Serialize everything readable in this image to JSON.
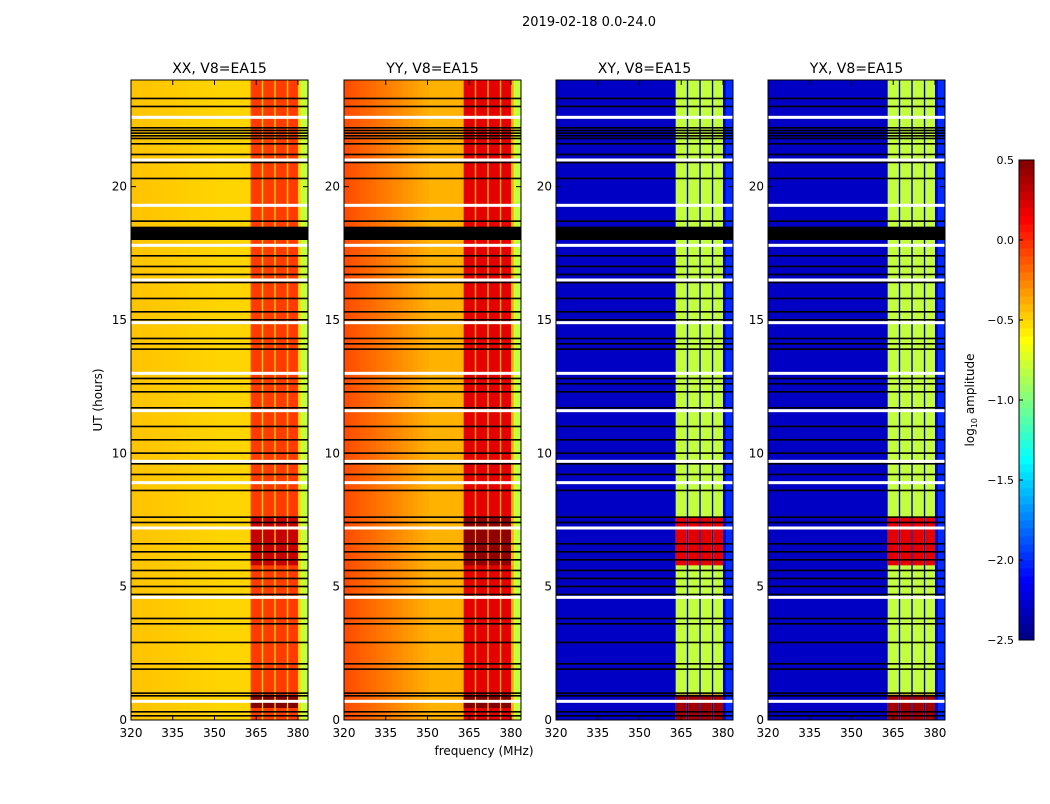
{
  "chart_data": {
    "type": "heatmap",
    "title": "2019-02-18 0.0-24.0",
    "xlabel": "frequency (MHz)",
    "ylabel": "UT (hours)",
    "xlim": [
      320,
      383.6
    ],
    "ylim": [
      0,
      24
    ],
    "xticks": [
      320,
      335,
      350,
      365,
      380
    ],
    "yticks": [
      0,
      5,
      10,
      15,
      20
    ],
    "colorbar": {
      "label_main": "log",
      "label_sub": "10",
      "label_tail": " amplitude",
      "range": [
        -2.5,
        0.5
      ],
      "ticks": [
        "0.5",
        "0.0",
        "−0.5",
        "−1.0",
        "−1.5",
        "−2.0",
        "−2.5"
      ],
      "tick_values": [
        0.5,
        0.0,
        -0.5,
        -1.0,
        -1.5,
        -2.0,
        -2.5
      ],
      "colormap": "jet"
    },
    "band_channels_mhz": [
      [
        363,
        367
      ],
      [
        367.5,
        371.5
      ],
      [
        372,
        376
      ],
      [
        376.5,
        380
      ]
    ],
    "flagged_hours_black": [
      0.15,
      0.3,
      0.9,
      1.0,
      1.9,
      2.1,
      2.9,
      3.6,
      3.8,
      4.7,
      5.0,
      5.3,
      5.6,
      6.0,
      6.3,
      6.6,
      7.4,
      7.6,
      8.6,
      9.2,
      9.6,
      10.0,
      10.5,
      11.0,
      11.7,
      12.3,
      12.6,
      12.8,
      13.9,
      14.1,
      14.3,
      15.0,
      15.3,
      15.8,
      16.4,
      16.7,
      17.0,
      17.4,
      18.7,
      20.3,
      20.9,
      21.2,
      21.6,
      21.8,
      21.9,
      22.0,
      22.1,
      22.2,
      23.0,
      23.3
    ],
    "flagged_span_black": [
      18.0,
      18.5
    ],
    "gap_hours_white": [
      0.7,
      4.6,
      7.2,
      8.9,
      9.7,
      11.6,
      13.0,
      14.9,
      16.5,
      17.8,
      19.3,
      21.0,
      22.6
    ],
    "panels": [
      {
        "title": "XX, V8=EA15",
        "base_left": -0.45,
        "base_right": -0.5,
        "edge": -0.8,
        "band": -0.05,
        "band_bursts": [
          {
            "hours": [
              0.45,
              0.95
            ],
            "value": 0.5
          },
          {
            "hours": [
              5.8,
              7.6
            ],
            "value": 0.3
          }
        ]
      },
      {
        "title": "YY, V8=EA15",
        "base_left": -0.1,
        "base_right": -0.4,
        "edge": -0.8,
        "band": 0.2,
        "band_bursts": [
          {
            "hours": [
              0.45,
              0.95
            ],
            "value": 0.5
          },
          {
            "hours": [
              5.8,
              7.6
            ],
            "value": 0.45
          }
        ]
      },
      {
        "title": "XY, V8=EA15",
        "base_left": -2.3,
        "base_right": -2.3,
        "edge": -2.0,
        "band": -0.8,
        "band_bursts": [
          {
            "hours": [
              0.0,
              0.95
            ],
            "value": 0.4
          },
          {
            "hours": [
              5.8,
              7.6
            ],
            "value": 0.2
          }
        ]
      },
      {
        "title": "YX, V8=EA15",
        "base_left": -2.3,
        "base_right": -2.3,
        "edge": -2.0,
        "band": -0.8,
        "band_bursts": [
          {
            "hours": [
              0.0,
              0.95
            ],
            "value": 0.4
          },
          {
            "hours": [
              5.8,
              7.6
            ],
            "value": 0.2
          }
        ]
      }
    ]
  }
}
